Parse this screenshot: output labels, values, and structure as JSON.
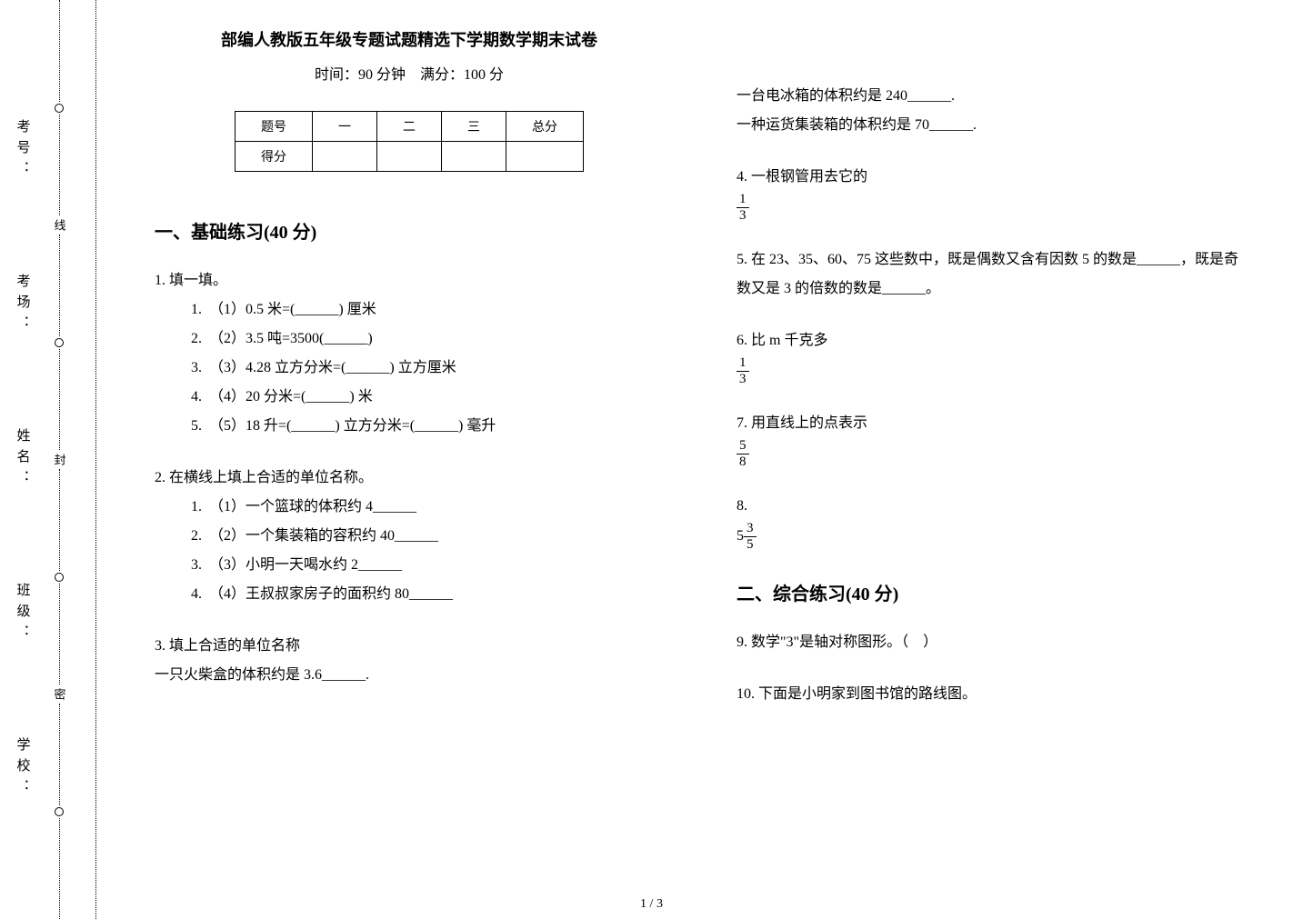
{
  "margin": {
    "labels": [
      "考号：",
      "考场：",
      "姓名：",
      "班级：",
      "学校："
    ],
    "cut_labels": [
      "线",
      "封",
      "密"
    ]
  },
  "header": {
    "title": "部编人教版五年级专题试题精选下学期数学期末试卷",
    "time": "时间：90 分钟　满分：100 分"
  },
  "score_table": {
    "head": [
      "题号",
      "一",
      "二",
      "三",
      "总分"
    ],
    "row": [
      "得分",
      "",
      "",
      "",
      ""
    ]
  },
  "sections": {
    "s1": "一、基础练习(40 分)",
    "s2": "二、综合练习(40 分)"
  },
  "q1": {
    "stem": "1.  填一填。",
    "items": [
      "（1）0.5 米=(______) 厘米",
      "（2）3.5 吨=3500(______)",
      "（3）4.28 立方分米=(______) 立方厘米",
      "（4）20 分米=(______) 米",
      "（5）18 升=(______) 立方分米=(______) 毫升"
    ]
  },
  "q2": {
    "stem": "2.  在横线上填上合适的单位名称。",
    "items": [
      "（1）一个篮球的体积约 4______",
      "（2）一个集装箱的容积约 40______",
      "（3）小明一天喝水约 2______",
      "（4）王叔叔家房子的面积约 80______"
    ]
  },
  "q3": {
    "stem": "3.  填上合适的单位名称",
    "lines": [
      "一只火柴盒的体积约是 3.6______.",
      "一台电冰箱的体积约是 240______.",
      "一种运货集装箱的体积约是 70______."
    ]
  },
  "q4": {
    "stem": "4.  一根钢管用去它的"
  },
  "q5": {
    "stem": "5.  在 23、35、60、75 这些数中，既是偶数又含有因数 5 的数是______，既是奇数又是 3 的倍数的数是______。"
  },
  "q6": {
    "stem": "6.  比 m 千克多"
  },
  "q7": {
    "stem": "7.  用直线上的点表示"
  },
  "q8": {
    "stem": "8."
  },
  "q9": {
    "stem": "9.  数学\"3\"是轴对称图形。（　）"
  },
  "q10": {
    "stem": "10.  下面是小明家到图书馆的路线图。"
  },
  "frac13": {
    "n": "1",
    "d": "3"
  },
  "frac58": {
    "n": "5",
    "d": "8"
  },
  "frac35": {
    "n": "3",
    "d": "5"
  },
  "mixed535_whole": "5",
  "pagenum": "1 / 3"
}
